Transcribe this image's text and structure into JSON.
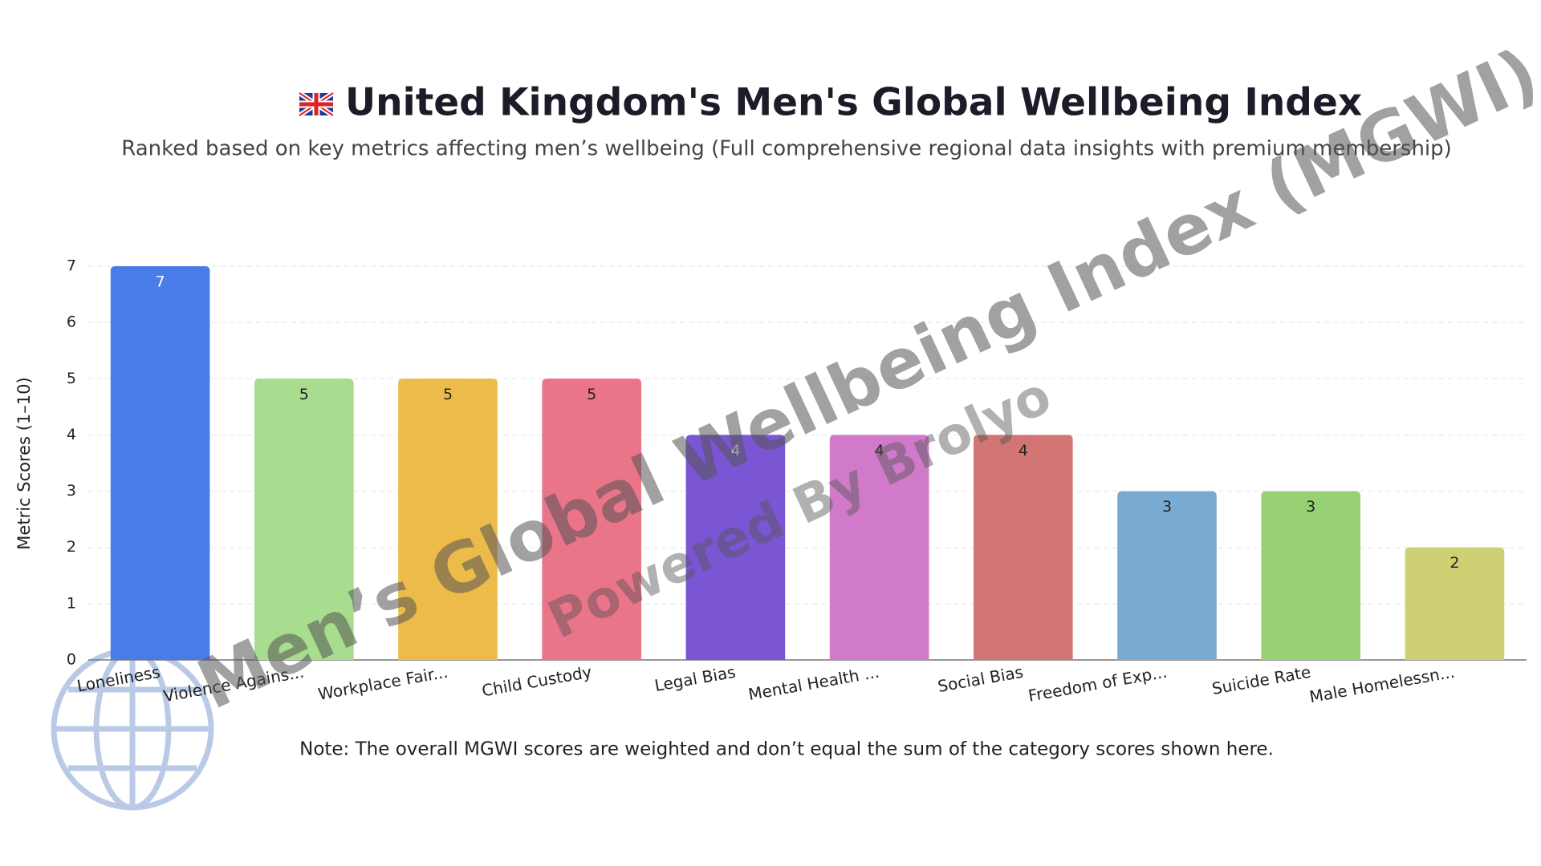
{
  "chart_data": {
    "type": "bar",
    "title": "United Kingdom's Men's Global Wellbeing Index",
    "subtitle": "Ranked based on key metrics affecting men’s wellbeing (Full comprehensive regional data insights with premium membership)",
    "y_label": "Metric Scores (1–10)",
    "categories": [
      "Loneliness",
      "Violence Agains...",
      "Workplace Fair...",
      "Child Custody",
      "Legal Bias",
      "Mental Health ...",
      "Social Bias",
      "Freedom of Exp...",
      "Suicide Rate",
      "Male Homelessn..."
    ],
    "values": [
      7,
      5,
      5,
      5,
      4,
      4,
      4,
      3,
      3,
      2
    ],
    "colors": [
      "#4a7ce8",
      "#a8dc8e",
      "#edbb4a",
      "#ea7488",
      "#7b56d4",
      "#d07ac9",
      "#d37575",
      "#78aad2",
      "#98d174",
      "#cdd174"
    ],
    "ylim": [
      0,
      7
    ],
    "yticks": [
      0,
      1,
      2,
      3,
      4,
      5,
      6,
      7
    ],
    "grid": true,
    "note": "Note: The overall MGWI scores are weighted and don’t equal the sum of the category scores shown here.",
    "watermark": "Men’s Global Wellbeing Index (MGWI)",
    "watermark_sub": "Powered By Brolyo"
  }
}
